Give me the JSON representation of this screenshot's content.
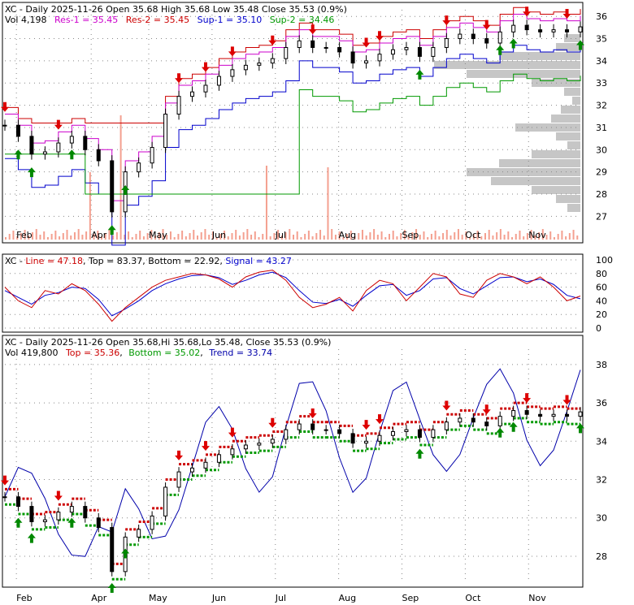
{
  "colors": {
    "res1": "#cc00cc",
    "res2": "#cc0000",
    "sup1": "#0000cc",
    "sup2": "#009900",
    "line": "#cc0000",
    "top": "#000000",
    "bottom": "#000000",
    "signal": "#0000cc",
    "trend": "#0000aa",
    "up_arrow": "#008800",
    "down_arrow": "#dd0000",
    "volume": "#f4a090",
    "profile": "#c0c0c0"
  },
  "panel1": {
    "header": {
      "l1_prefix": "XC - Daily 2025-11-26 Open 35.68  High 35.68  Low 35.48  Close 35.53 (0.9%)",
      "vol": "Vol 4,198",
      "res1": "Res-1 = 35.45",
      "res2": "Res-2 = 35.45",
      "sup1": "Sup-1 = 35.10",
      "sup2": "Sup-2 = 34.46"
    },
    "y_ticks": [
      "36",
      "35",
      "34",
      "33",
      "32",
      "31",
      "30",
      "29",
      "28",
      "27"
    ],
    "x_ticks": [
      "Feb",
      "Apr",
      "May",
      "Jun",
      "Jul",
      "Aug",
      "Sep",
      "Oct",
      "Nov"
    ]
  },
  "panel2": {
    "header": {
      "prefix": "XC",
      "line": "Line = 47.18",
      "top": "Top = 83.37",
      "bottom": "Bottom = 22.92",
      "signal": "Signal = 43.27"
    },
    "y_ticks": [
      "100",
      "80",
      "60",
      "40",
      "20",
      "0"
    ]
  },
  "panel3": {
    "header": {
      "l1": "XC - Daily 2025-11-26 Open 35.68,Hi 35.68,Lo 35.48, Close 35.53 (0.9%)",
      "vol": "Vol 419,800",
      "top": "Top = 35.36",
      "bottom": "Bottom = 35.02",
      "trend": "Trend = 33.74"
    },
    "y_ticks": [
      "38",
      "36",
      "34",
      "32",
      "30",
      "28"
    ],
    "x_ticks": [
      "Feb",
      "Apr",
      "May",
      "Jun",
      "Jul",
      "Aug",
      "Sep",
      "Oct",
      "Nov"
    ]
  },
  "chart_data": {
    "type": "line",
    "x": [
      "2025-01-28",
      "2025-02-04",
      "2025-02-11",
      "2025-02-18",
      "2025-02-25",
      "2025-03-04",
      "2025-03-11",
      "2025-03-18",
      "2025-03-25",
      "2025-04-01",
      "2025-04-08",
      "2025-04-15",
      "2025-04-22",
      "2025-04-29",
      "2025-05-06",
      "2025-05-13",
      "2025-05-20",
      "2025-05-27",
      "2025-06-03",
      "2025-06-10",
      "2025-06-17",
      "2025-06-24",
      "2025-07-01",
      "2025-07-08",
      "2025-07-15",
      "2025-07-22",
      "2025-07-29",
      "2025-08-05",
      "2025-08-12",
      "2025-08-19",
      "2025-08-26",
      "2025-09-02",
      "2025-09-09",
      "2025-09-16",
      "2025-09-23",
      "2025-09-30",
      "2025-10-07",
      "2025-10-14",
      "2025-10-21",
      "2025-10-28",
      "2025-11-04",
      "2025-11-11",
      "2025-11-18",
      "2025-11-26"
    ],
    "close": [
      31.1,
      30.6,
      29.8,
      29.9,
      30.3,
      30.6,
      30.0,
      29.5,
      27.2,
      29.0,
      29.4,
      30.1,
      31.6,
      32.4,
      32.6,
      32.9,
      33.3,
      33.6,
      33.8,
      33.9,
      34.1,
      34.6,
      34.9,
      34.6,
      34.6,
      34.4,
      33.9,
      34.0,
      34.3,
      34.5,
      34.6,
      34.2,
      34.6,
      35.0,
      35.2,
      35.0,
      34.8,
      35.3,
      35.6,
      35.4,
      35.3,
      35.4,
      35.3,
      35.53
    ],
    "stochastic_line": [
      60,
      40,
      30,
      55,
      50,
      65,
      55,
      35,
      10,
      30,
      45,
      60,
      70,
      75,
      80,
      78,
      72,
      60,
      75,
      82,
      85,
      70,
      45,
      30,
      35,
      45,
      25,
      55,
      70,
      65,
      40,
      60,
      80,
      75,
      50,
      45,
      70,
      80,
      75,
      65,
      75,
      60,
      40,
      47
    ],
    "stochastic_signal": [
      55,
      45,
      35,
      48,
      52,
      60,
      58,
      42,
      18,
      28,
      40,
      55,
      65,
      72,
      77,
      78,
      74,
      64,
      70,
      78,
      82,
      74,
      55,
      38,
      36,
      42,
      32,
      48,
      62,
      64,
      48,
      55,
      72,
      74,
      58,
      50,
      62,
      74,
      75,
      68,
      72,
      64,
      48,
      43
    ]
  }
}
